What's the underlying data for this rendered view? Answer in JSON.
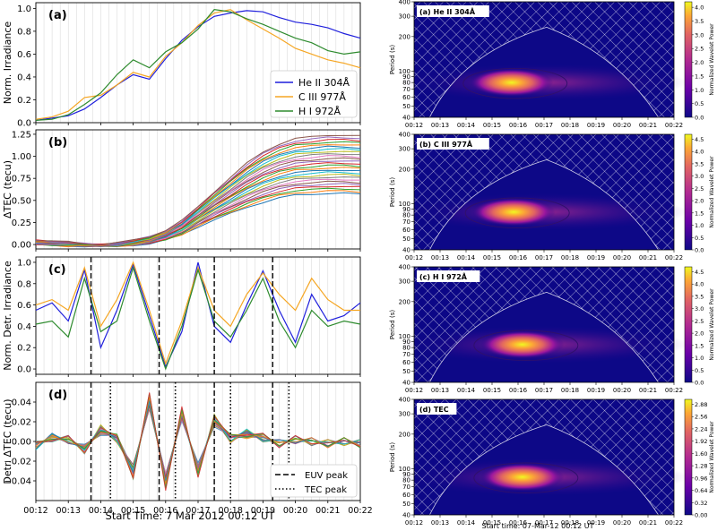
{
  "figure": {
    "left_xticks": [
      "00:12",
      "00:13",
      "00:14",
      "00:15",
      "00:16",
      "00:17",
      "00:18",
      "00:19",
      "00:20",
      "00:21",
      "00:22"
    ],
    "left_xlabel": "Start Time: 7 Mar 2012 00:12 UT",
    "right_xticks": [
      "00:12",
      "00:13",
      "00:14",
      "00:15",
      "00:16",
      "00:17",
      "00:18",
      "00:19",
      "00:20",
      "00:21",
      "00:22"
    ],
    "right_xlabel": "Start time: 07-Mar-12 00:12 UT"
  },
  "chart_data": [
    {
      "type": "line",
      "panel": "(a)",
      "ylabel": "Norm. Irradiance",
      "ylim": [
        0,
        1.05
      ],
      "yticks": [
        "0.0",
        "0.2",
        "0.4",
        "0.6",
        "0.8",
        "1.0"
      ],
      "x_minutes": [
        0,
        0.5,
        1,
        1.5,
        2,
        2.5,
        3,
        3.5,
        4,
        4.5,
        5,
        5.5,
        6,
        6.5,
        7,
        7.5,
        8,
        8.5,
        9,
        9.5,
        10
      ],
      "series": [
        {
          "name": "He II 304Å",
          "color": "#1f1fdc",
          "values": [
            0.02,
            0.04,
            0.06,
            0.12,
            0.22,
            0.33,
            0.42,
            0.38,
            0.56,
            0.72,
            0.84,
            0.93,
            0.96,
            0.98,
            0.97,
            0.92,
            0.88,
            0.86,
            0.83,
            0.78,
            0.74
          ]
        },
        {
          "name": "C III 977Å",
          "color": "#f5a623",
          "values": [
            0.03,
            0.05,
            0.1,
            0.22,
            0.24,
            0.33,
            0.44,
            0.4,
            0.58,
            0.7,
            0.85,
            0.96,
            0.99,
            0.9,
            0.82,
            0.74,
            0.65,
            0.6,
            0.55,
            0.52,
            0.48
          ]
        },
        {
          "name": "H I 972Å",
          "color": "#2e8b2e",
          "values": [
            0.02,
            0.03,
            0.07,
            0.16,
            0.26,
            0.42,
            0.55,
            0.48,
            0.62,
            0.7,
            0.82,
            0.99,
            0.97,
            0.91,
            0.86,
            0.8,
            0.74,
            0.7,
            0.63,
            0.6,
            0.62
          ]
        }
      ],
      "legend": [
        "He II 304Å",
        "C III 977Å",
        "H I 972Å"
      ],
      "legend_loc": "center-right"
    },
    {
      "type": "line",
      "panel": "(b)",
      "ylabel": "ΔTEC (tecu)",
      "ylim": [
        -0.05,
        1.3
      ],
      "yticks": [
        "0.00",
        "0.25",
        "0.50",
        "0.75",
        "1.00",
        "1.25"
      ],
      "x_minutes": [
        0,
        0.5,
        1,
        1.5,
        2,
        2.5,
        3,
        3.5,
        4,
        4.5,
        5,
        5.5,
        6,
        6.5,
        7,
        7.5,
        8,
        8.5,
        9,
        9.5,
        10
      ],
      "series_note": "ensemble of ~30 receiver-satellite TEC curves; shown with median curve and spread",
      "median": [
        0.02,
        0.01,
        0.0,
        -0.01,
        -0.01,
        0.0,
        0.02,
        0.05,
        0.1,
        0.18,
        0.3,
        0.42,
        0.55,
        0.68,
        0.79,
        0.87,
        0.92,
        0.95,
        0.96,
        0.96,
        0.95
      ],
      "spread_low": [
        0.0,
        -0.01,
        -0.02,
        -0.02,
        -0.02,
        -0.02,
        -0.01,
        0.01,
        0.05,
        0.11,
        0.2,
        0.28,
        0.35,
        0.42,
        0.48,
        0.53,
        0.56,
        0.57,
        0.58,
        0.58,
        0.57
      ],
      "spread_high": [
        0.05,
        0.04,
        0.03,
        0.01,
        0.0,
        0.02,
        0.05,
        0.09,
        0.16,
        0.27,
        0.43,
        0.6,
        0.76,
        0.92,
        1.05,
        1.14,
        1.2,
        1.22,
        1.24,
        1.24,
        1.23
      ]
    },
    {
      "type": "line",
      "panel": "(c)",
      "ylabel": "Norm. Detr. Irradiance",
      "ylim": [
        -0.05,
        1.05
      ],
      "yticks": [
        "0.0",
        "0.2",
        "0.4",
        "0.6",
        "0.8",
        "1.0"
      ],
      "x_minutes": [
        0,
        0.5,
        1,
        1.5,
        2,
        2.5,
        3,
        3.5,
        4,
        4.5,
        5,
        5.5,
        6,
        6.5,
        7,
        7.5,
        8,
        8.5,
        9,
        9.5,
        10
      ],
      "series": [
        {
          "name": "He II 304Å",
          "color": "#1f1fdc",
          "values": [
            0.55,
            0.62,
            0.45,
            0.93,
            0.2,
            0.55,
            0.98,
            0.5,
            0.02,
            0.35,
            1.0,
            0.4,
            0.25,
            0.6,
            0.92,
            0.55,
            0.25,
            0.7,
            0.45,
            0.5,
            0.62
          ]
        },
        {
          "name": "C III 977Å",
          "color": "#f5a623",
          "values": [
            0.6,
            0.65,
            0.55,
            0.95,
            0.4,
            0.65,
            1.0,
            0.55,
            0.05,
            0.45,
            0.95,
            0.55,
            0.4,
            0.7,
            0.9,
            0.7,
            0.55,
            0.85,
            0.65,
            0.55,
            0.55
          ]
        },
        {
          "name": "H I 972Å",
          "color": "#2e8b2e",
          "values": [
            0.42,
            0.45,
            0.3,
            0.85,
            0.35,
            0.45,
            0.95,
            0.45,
            0.0,
            0.4,
            0.93,
            0.45,
            0.3,
            0.55,
            0.85,
            0.45,
            0.2,
            0.55,
            0.4,
            0.45,
            0.42
          ]
        }
      ],
      "vlines_dashed_minutes": [
        1.7,
        3.8,
        5.5,
        7.3
      ]
    },
    {
      "type": "line",
      "panel": "(d)",
      "ylabel": "Detr. ΔTEC (tecu)",
      "ylim": [
        -0.06,
        0.06
      ],
      "yticks": [
        "−0.04",
        "−0.02",
        "0.00",
        "0.02",
        "0.04"
      ],
      "x_minutes": [
        0,
        0.5,
        1,
        1.5,
        2,
        2.5,
        3,
        3.5,
        4,
        4.5,
        5,
        5.5,
        6,
        6.5,
        7,
        7.5,
        8,
        8.5,
        9,
        9.5,
        10
      ],
      "median": [
        -0.004,
        0.004,
        0.002,
        -0.008,
        0.012,
        0.003,
        -0.03,
        0.04,
        -0.04,
        0.028,
        -0.03,
        0.022,
        0.003,
        0.008,
        0.004,
        -0.002,
        0.002,
        0.0,
        -0.002,
        0.0,
        -0.002
      ],
      "spread": 0.012,
      "vlines_dashed_minutes": [
        1.7,
        3.8,
        5.5,
        7.3
      ],
      "vlines_dotted_minutes": [
        2.3,
        4.3,
        6.0,
        7.8
      ],
      "legend": [
        "EUV peak",
        "TEC peak"
      ],
      "legend_loc": "lower-right"
    },
    {
      "type": "heatmap",
      "panel": "(a) He II 304Å",
      "ylabel": "Period (s)",
      "yticks": [
        "40",
        "50",
        "60",
        "70",
        "80",
        "90",
        "100",
        "200",
        "300",
        "400"
      ],
      "colorbar_label": "Normalized Wavelet Power",
      "colorbar_ticks": [
        "0.0",
        "0.5",
        "1.0",
        "1.5",
        "2.0",
        "2.5",
        "3.0",
        "3.5",
        "4.0"
      ],
      "peak_time": "00:15:45",
      "peak_period_s": 80
    },
    {
      "type": "heatmap",
      "panel": "(b) C III 977Å",
      "ylabel": "Period (s)",
      "yticks": [
        "40",
        "50",
        "60",
        "70",
        "80",
        "90",
        "100",
        "200",
        "300",
        "400"
      ],
      "colorbar_label": "Normalized Wavelet Power",
      "colorbar_ticks": [
        "0.0",
        "0.5",
        "1.0",
        "1.5",
        "2.0",
        "2.5",
        "3.0",
        "3.5",
        "4.0",
        "4.5"
      ],
      "peak_time": "00:15:50",
      "peak_period_s": 85
    },
    {
      "type": "heatmap",
      "panel": "(c) H I 972Å",
      "ylabel": "Period (s)",
      "yticks": [
        "40",
        "50",
        "60",
        "70",
        "80",
        "90",
        "100",
        "200",
        "300",
        "400"
      ],
      "colorbar_label": "Normalized Wavelet Power",
      "colorbar_ticks": [
        "0.0",
        "0.5",
        "1.0",
        "1.5",
        "2.0",
        "2.5",
        "3.0",
        "3.5",
        "4.0",
        "4.5"
      ],
      "peak_time": "00:16:10",
      "peak_period_s": 85
    },
    {
      "type": "heatmap",
      "panel": "(d) TEC",
      "ylabel": "Period (s)",
      "yticks": [
        "40",
        "50",
        "60",
        "70",
        "80",
        "90",
        "100",
        "200",
        "300",
        "400"
      ],
      "colorbar_label": "Normalized Wavelet Power",
      "colorbar_ticks": [
        "0.00",
        "0.32",
        "0.64",
        "0.96",
        "1.28",
        "1.60",
        "1.92",
        "2.24",
        "2.56",
        "2.88"
      ],
      "peak_time": "00:16:10",
      "peak_period_s": 85
    }
  ],
  "colors": {
    "heat_low": "#0d0887",
    "heat_mid": "#7e03a8",
    "heat_high": "#f0f921",
    "ensemble_palette": [
      "#1f77b4",
      "#ff7f0e",
      "#2ca02c",
      "#d62728",
      "#9467bd",
      "#8c564b",
      "#e377c2",
      "#7f7f7f",
      "#bcbd22",
      "#17becf"
    ]
  }
}
